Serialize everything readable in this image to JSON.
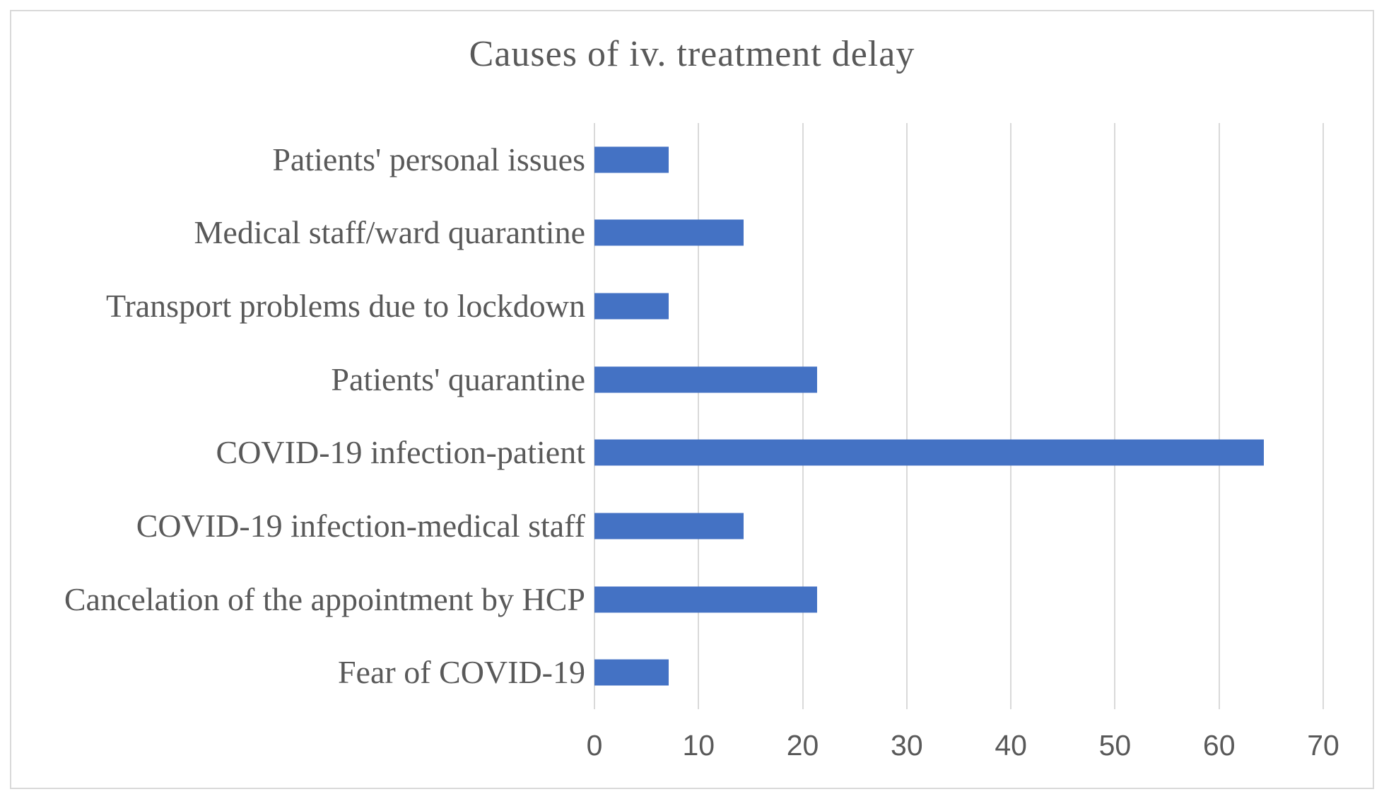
{
  "chart_data": {
    "type": "bar",
    "orientation": "horizontal",
    "title": "Causes of iv. treatment delay",
    "categories": [
      "Patients' personal issues",
      "Medical staff/ward quarantine",
      "Transport problems due to lockdown",
      "Patients' quarantine",
      "COVID-19 infection-patient",
      "COVID-19 infection-medical staff",
      "Cancelation of the appointment by HCP",
      "Fear of COVID-19"
    ],
    "values": [
      7.1,
      14.3,
      7.1,
      21.4,
      64.3,
      14.3,
      21.4,
      7.1
    ],
    "xlabel": "",
    "ylabel": "",
    "xlim": [
      0,
      70
    ],
    "xticks": [
      "0",
      "10",
      "20",
      "30",
      "40",
      "50",
      "60",
      "70"
    ],
    "grid": "vertical gridlines on",
    "legend": "none",
    "colors": {
      "bar": "#4472c4",
      "gridline": "#d9d9d9",
      "text": "#595959",
      "frame_border": "#d9d9d9",
      "background": "#ffffff"
    }
  }
}
